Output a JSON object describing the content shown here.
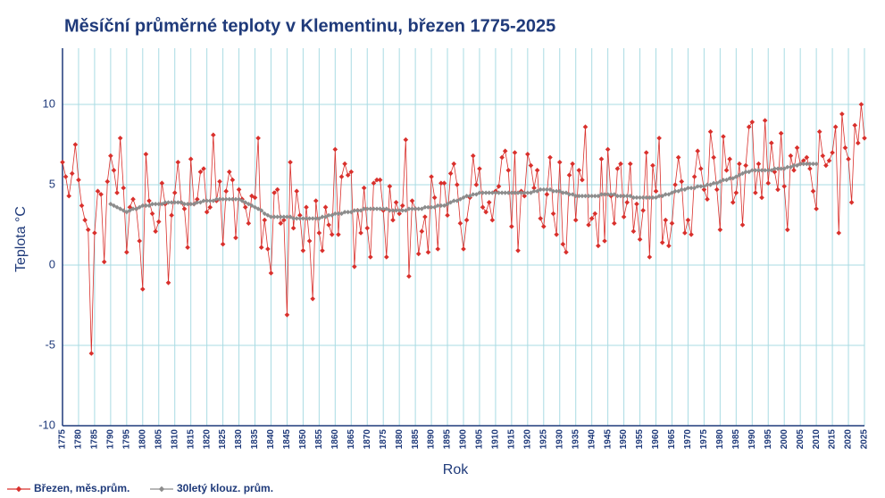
{
  "chart_data": {
    "type": "line",
    "title": "Měsíční průměrné teploty v Klementinu, březen 1775-2025",
    "xlabel": "Rok",
    "ylabel": "Teplota  °C",
    "x": [
      1775,
      1776,
      1777,
      1778,
      1779,
      1780,
      1781,
      1782,
      1783,
      1784,
      1785,
      1786,
      1787,
      1788,
      1789,
      1790,
      1791,
      1792,
      1793,
      1794,
      1795,
      1796,
      1797,
      1798,
      1799,
      1800,
      1801,
      1802,
      1803,
      1804,
      1805,
      1806,
      1807,
      1808,
      1809,
      1810,
      1811,
      1812,
      1813,
      1814,
      1815,
      1816,
      1817,
      1818,
      1819,
      1820,
      1821,
      1822,
      1823,
      1824,
      1825,
      1826,
      1827,
      1828,
      1829,
      1830,
      1831,
      1832,
      1833,
      1834,
      1835,
      1836,
      1837,
      1838,
      1839,
      1840,
      1841,
      1842,
      1843,
      1844,
      1845,
      1846,
      1847,
      1848,
      1849,
      1850,
      1851,
      1852,
      1853,
      1854,
      1855,
      1856,
      1857,
      1858,
      1859,
      1860,
      1861,
      1862,
      1863,
      1864,
      1865,
      1866,
      1867,
      1868,
      1869,
      1870,
      1871,
      1872,
      1873,
      1874,
      1875,
      1876,
      1877,
      1878,
      1879,
      1880,
      1881,
      1882,
      1883,
      1884,
      1885,
      1886,
      1887,
      1888,
      1889,
      1890,
      1891,
      1892,
      1893,
      1894,
      1895,
      1896,
      1897,
      1898,
      1899,
      1900,
      1901,
      1902,
      1903,
      1904,
      1905,
      1906,
      1907,
      1908,
      1909,
      1910,
      1911,
      1912,
      1913,
      1914,
      1915,
      1916,
      1917,
      1918,
      1919,
      1920,
      1921,
      1922,
      1923,
      1924,
      1925,
      1926,
      1927,
      1928,
      1929,
      1930,
      1931,
      1932,
      1933,
      1934,
      1935,
      1936,
      1937,
      1938,
      1939,
      1940,
      1941,
      1942,
      1943,
      1944,
      1945,
      1946,
      1947,
      1948,
      1949,
      1950,
      1951,
      1952,
      1953,
      1954,
      1955,
      1956,
      1957,
      1958,
      1959,
      1960,
      1961,
      1962,
      1963,
      1964,
      1965,
      1966,
      1967,
      1968,
      1969,
      1970,
      1971,
      1972,
      1973,
      1974,
      1975,
      1976,
      1977,
      1978,
      1979,
      1980,
      1981,
      1982,
      1983,
      1984,
      1985,
      1986,
      1987,
      1988,
      1989,
      1990,
      1991,
      1992,
      1993,
      1994,
      1995,
      1996,
      1997,
      1998,
      1999,
      2000,
      2001,
      2002,
      2003,
      2004,
      2005,
      2006,
      2007,
      2008,
      2009,
      2010,
      2011,
      2012,
      2013,
      2014,
      2015,
      2016,
      2017,
      2018,
      2019,
      2020,
      2021,
      2022,
      2023,
      2024,
      2025
    ],
    "series": [
      {
        "name": "Březen, měs.prům.",
        "color": "#d9302c",
        "values": [
          6.4,
          5.5,
          4.3,
          5.7,
          7.5,
          5.3,
          3.7,
          2.8,
          2.2,
          -5.5,
          2.0,
          4.6,
          4.4,
          0.2,
          5.2,
          6.8,
          5.9,
          4.5,
          7.9,
          4.8,
          0.8,
          3.6,
          4.1,
          3.5,
          1.5,
          -1.5,
          6.9,
          4.0,
          3.2,
          2.1,
          2.7,
          5.1,
          3.8,
          -1.1,
          3.1,
          4.5,
          6.4,
          3.9,
          3.5,
          1.1,
          6.6,
          3.8,
          4.1,
          5.8,
          6.0,
          3.3,
          3.6,
          8.1,
          4.0,
          5.2,
          1.3,
          4.6,
          5.8,
          5.3,
          1.7,
          4.7,
          4.1,
          3.6,
          2.6,
          4.3,
          4.2,
          7.9,
          1.1,
          2.8,
          1.0,
          -0.5,
          4.5,
          4.7,
          2.6,
          2.8,
          -3.1,
          6.4,
          2.3,
          4.6,
          3.1,
          0.9,
          3.6,
          1.5,
          -2.1,
          4.0,
          2.0,
          0.9,
          3.6,
          2.5,
          1.9,
          7.2,
          1.9,
          5.5,
          6.3,
          5.6,
          5.8,
          -0.1,
          3.4,
          2.0,
          4.8,
          2.3,
          0.5,
          5.1,
          5.3,
          5.3,
          3.4,
          0.5,
          4.9,
          2.8,
          3.9,
          3.2,
          3.7,
          7.8,
          -0.7,
          4.0,
          3.5,
          0.7,
          2.1,
          3.0,
          0.8,
          5.5,
          4.2,
          1.0,
          5.1,
          5.1,
          3.1,
          5.7,
          6.3,
          5.0,
          2.6,
          1.0,
          2.8,
          4.2,
          6.8,
          5.0,
          6.0,
          3.6,
          3.3,
          3.9,
          2.8,
          4.6,
          4.9,
          6.7,
          7.1,
          5.9,
          2.4,
          7.0,
          0.9,
          4.6,
          4.3,
          6.9,
          6.2,
          4.8,
          5.9,
          2.9,
          2.4,
          4.4,
          6.7,
          3.2,
          1.9,
          6.4,
          1.3,
          0.8,
          5.6,
          6.3,
          2.8,
          5.9,
          5.3,
          8.6,
          2.5,
          2.9,
          3.2,
          1.2,
          6.6,
          1.5,
          7.2,
          4.3,
          2.6,
          6.0,
          6.3,
          3.0,
          3.9,
          6.3,
          2.1,
          3.8,
          1.6,
          3.4,
          7.0,
          0.5,
          6.2,
          4.6,
          7.9,
          1.4,
          2.8,
          1.2,
          2.6,
          5.0,
          6.7,
          5.2,
          2.0,
          2.8,
          1.9,
          5.5,
          7.1,
          6.0,
          4.7,
          4.1,
          8.3,
          6.7,
          4.7,
          2.2,
          8.0,
          5.9,
          6.6,
          3.9,
          4.5,
          6.3,
          2.5,
          6.2,
          8.6,
          8.9,
          4.5,
          6.3,
          4.2,
          9.0,
          5.1,
          7.6,
          5.8,
          4.7,
          8.2,
          4.9,
          2.2,
          6.8,
          5.9,
          7.3,
          6.3,
          6.5,
          6.7,
          6.0,
          4.6,
          3.5,
          8.3,
          6.8,
          6.2,
          6.5,
          7.0,
          8.6,
          2.0,
          9.4,
          7.3,
          6.6,
          3.9,
          8.7,
          7.6,
          10.0,
          7.9
        ]
      },
      {
        "name": "30letý klouz. prům.",
        "color": "#8c8c8c",
        "values": [
          null,
          null,
          null,
          null,
          null,
          null,
          null,
          null,
          null,
          null,
          null,
          null,
          null,
          null,
          null,
          3.8,
          3.7,
          3.6,
          3.5,
          3.4,
          3.3,
          3.4,
          3.5,
          3.5,
          3.6,
          3.7,
          3.7,
          3.7,
          3.8,
          3.8,
          3.8,
          3.8,
          3.9,
          3.9,
          3.9,
          3.9,
          3.9,
          3.9,
          3.8,
          3.8,
          3.8,
          3.8,
          3.9,
          3.9,
          4.0,
          4.0,
          4.0,
          4.0,
          4.1,
          4.1,
          4.1,
          4.1,
          4.1,
          4.1,
          4.1,
          4.1,
          4.0,
          3.9,
          3.8,
          3.7,
          3.6,
          3.5,
          3.4,
          3.2,
          3.1,
          3.0,
          3.0,
          3.0,
          3.0,
          3.0,
          3.0,
          3.0,
          2.9,
          2.9,
          2.9,
          2.9,
          2.9,
          2.9,
          2.9,
          2.9,
          2.9,
          3.0,
          3.0,
          3.1,
          3.1,
          3.2,
          3.2,
          3.2,
          3.3,
          3.3,
          3.3,
          3.4,
          3.4,
          3.4,
          3.5,
          3.5,
          3.5,
          3.5,
          3.5,
          3.5,
          3.5,
          3.5,
          3.4,
          3.4,
          3.4,
          3.4,
          3.4,
          3.4,
          3.5,
          3.5,
          3.5,
          3.5,
          3.5,
          3.6,
          3.6,
          3.6,
          3.6,
          3.7,
          3.7,
          3.7,
          3.8,
          3.9,
          4.0,
          4.0,
          4.1,
          4.2,
          4.3,
          4.3,
          4.4,
          4.4,
          4.5,
          4.5,
          4.5,
          4.5,
          4.5,
          4.5,
          4.5,
          4.5,
          4.5,
          4.5,
          4.5,
          4.5,
          4.5,
          4.5,
          4.5,
          4.5,
          4.5,
          4.6,
          4.6,
          4.7,
          4.7,
          4.7,
          4.7,
          4.6,
          4.6,
          4.6,
          4.5,
          4.5,
          4.4,
          4.4,
          4.3,
          4.3,
          4.3,
          4.3,
          4.3,
          4.3,
          4.3,
          4.3,
          4.4,
          4.4,
          4.4,
          4.4,
          4.4,
          4.3,
          4.3,
          4.3,
          4.3,
          4.3,
          4.2,
          4.2,
          4.2,
          4.2,
          4.2,
          4.2,
          4.2,
          4.2,
          4.3,
          4.3,
          4.4,
          4.4,
          4.5,
          4.6,
          4.6,
          4.7,
          4.7,
          4.8,
          4.8,
          4.8,
          4.9,
          4.9,
          4.9,
          5.0,
          5.0,
          5.1,
          5.1,
          5.2,
          5.3,
          5.3,
          5.4,
          5.4,
          5.5,
          5.6,
          5.7,
          5.8,
          5.8,
          5.9,
          5.9,
          5.9,
          5.9,
          5.9,
          5.9,
          5.9,
          6.0,
          6.0,
          6.0,
          6.0,
          6.1,
          6.1,
          6.2,
          6.2,
          6.3,
          6.3,
          6.3,
          6.3,
          6.3,
          6.3,
          null,
          null,
          null,
          null,
          null,
          null,
          null,
          null,
          null,
          null,
          null,
          null,
          null,
          null,
          null
        ]
      }
    ],
    "xlim": [
      1775,
      2025
    ],
    "xticks": [
      1775,
      1780,
      1785,
      1790,
      1795,
      1800,
      1805,
      1810,
      1815,
      1820,
      1825,
      1830,
      1835,
      1840,
      1845,
      1850,
      1855,
      1860,
      1865,
      1870,
      1875,
      1880,
      1885,
      1890,
      1895,
      1900,
      1905,
      1910,
      1915,
      1920,
      1925,
      1930,
      1935,
      1940,
      1945,
      1950,
      1955,
      1960,
      1965,
      1970,
      1975,
      1980,
      1985,
      1990,
      1995,
      2000,
      2005,
      2010,
      2015,
      2020,
      2025
    ],
    "ylim": [
      -10,
      13.5
    ],
    "yticks": [
      -10,
      -5,
      0,
      5,
      10
    ],
    "grid": true,
    "legend": "bottom-left"
  }
}
